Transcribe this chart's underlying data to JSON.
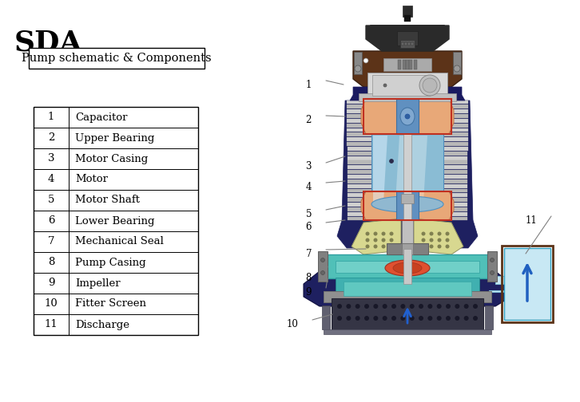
{
  "title": "SDA",
  "subtitle_box": "Pump schematic & Components",
  "table_data": [
    [
      "1",
      "Capacitor"
    ],
    [
      "2",
      "Upper Bearing"
    ],
    [
      "3",
      "Motor Casing"
    ],
    [
      "4",
      "Motor"
    ],
    [
      "5",
      "Motor Shaft"
    ],
    [
      "6",
      "Lower Bearing"
    ],
    [
      "7",
      "Mechanical Seal"
    ],
    [
      "8",
      "Pump Casing"
    ],
    [
      "9",
      "Impeller"
    ],
    [
      "10",
      "Fitter Screen"
    ],
    [
      "11",
      "Discharge"
    ]
  ],
  "background_color": "#ffffff",
  "title_fontsize": 26,
  "subtitle_fontsize": 10.5,
  "table_fontsize": 9.5,
  "colors": {
    "dark_gray": "#2a2a2a",
    "dark_brown": "#5c3318",
    "gray_light": "#c8c8c8",
    "gray_mid": "#b0b0b0",
    "blue_motor": "#8abcd4",
    "orange_bear": "#e8a878",
    "dark_navy": "#1e2060",
    "teal_casing": "#50c0b8",
    "yellow_imp": "#d8d890",
    "silver": "#c0c0c0",
    "red_detail": "#c03020",
    "light_blue_pipe": "#c8e8f4",
    "dark_steel": "#484858"
  }
}
